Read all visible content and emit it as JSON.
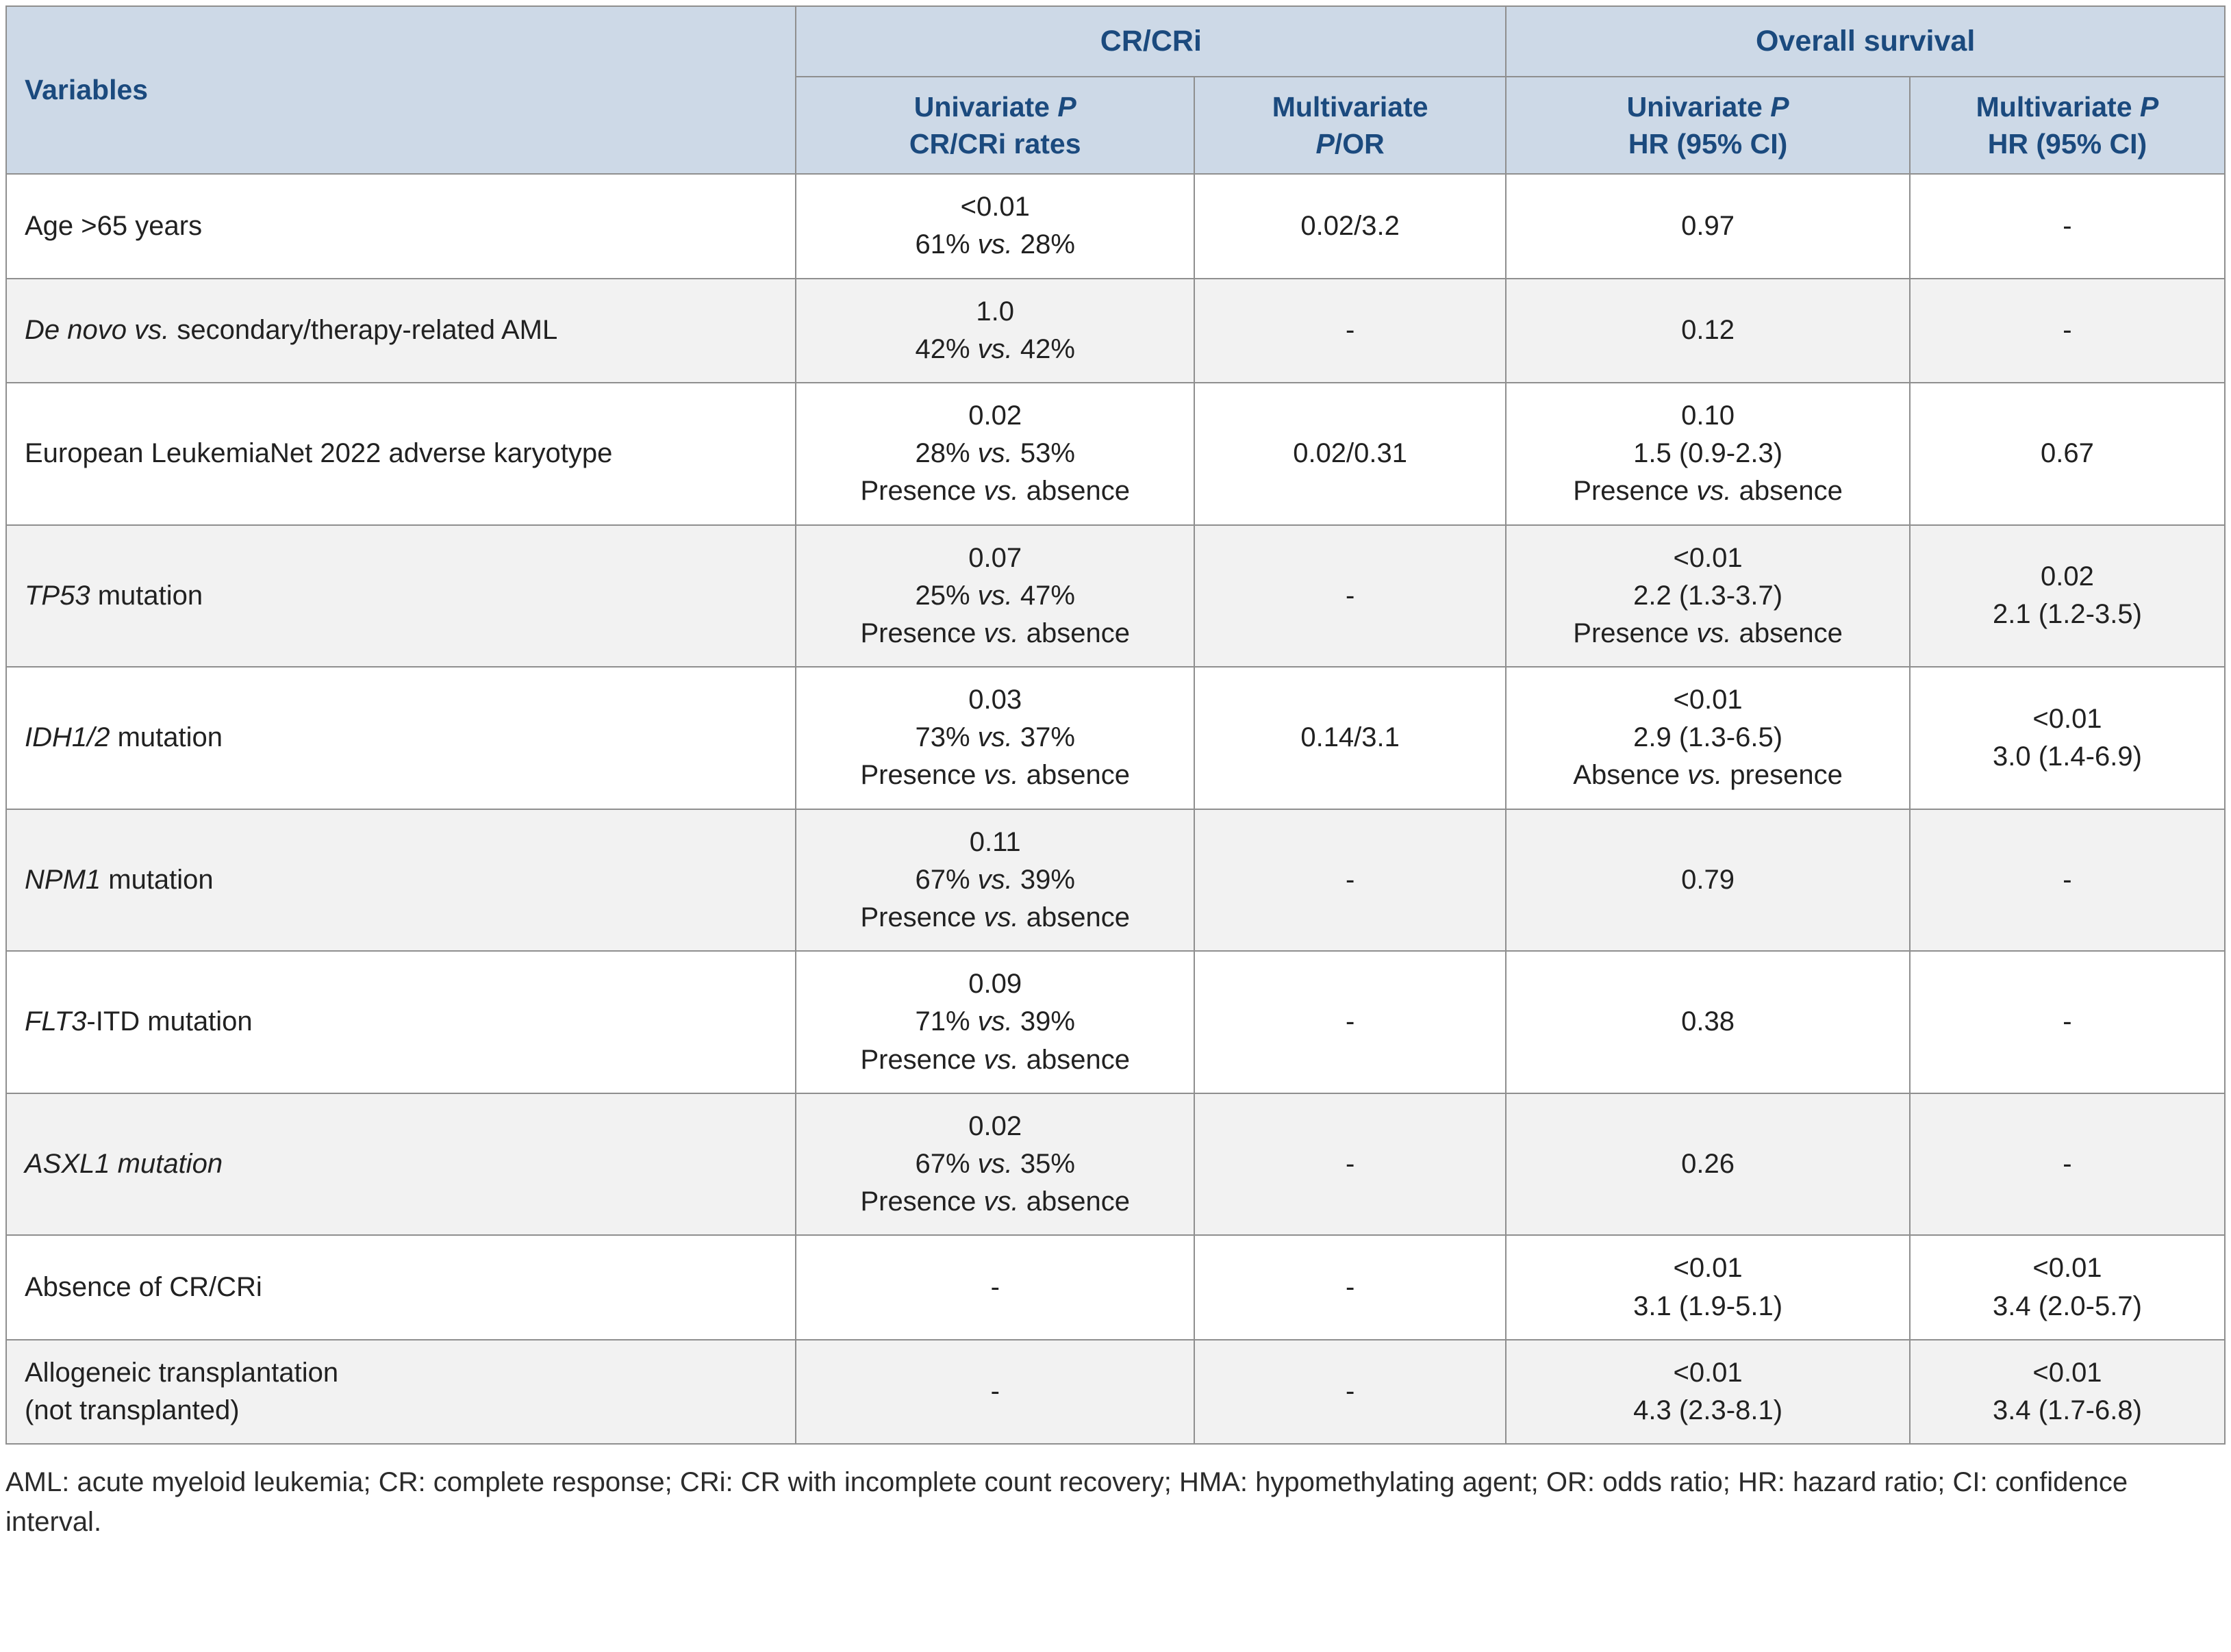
{
  "colors": {
    "header_bg": "#cdd9e7",
    "header_text": "#1b4a7e",
    "border": "#8f8f8f",
    "row_alt": "#f2f2f2",
    "body_text": "#212121"
  },
  "table": {
    "header": {
      "variables_label": "Variables",
      "groups": [
        {
          "label": "CR/CRi",
          "colspan": 2
        },
        {
          "label": "Overall survival",
          "colspan": 2
        }
      ],
      "subheaders": [
        [
          [
            "Univariate ",
            {
              "i": "P"
            }
          ],
          [
            "CR/CRi rates"
          ]
        ],
        [
          [
            "Multivariate"
          ],
          [
            {
              "i": "P"
            },
            "/OR"
          ]
        ],
        [
          [
            "Univariate ",
            {
              "i": "P"
            }
          ],
          [
            "HR (95% CI)"
          ]
        ],
        [
          [
            "Multivariate ",
            {
              "i": "P"
            }
          ],
          [
            "HR (95% CI)"
          ]
        ]
      ]
    },
    "rows": [
      {
        "name": "age-over-65",
        "variable": [
          [
            "Age >65 years"
          ]
        ],
        "cells": [
          [
            [
              "<0.01"
            ],
            [
              "61% ",
              {
                "i": "vs."
              },
              " 28%"
            ]
          ],
          [
            [
              "0.02/3.2"
            ]
          ],
          [
            [
              "0.97"
            ]
          ],
          [
            [
              "-"
            ]
          ]
        ]
      },
      {
        "name": "de-novo-vs-secondary",
        "variable": [
          [
            {
              "i": "De novo vs."
            },
            " secondary/therapy-related AML"
          ]
        ],
        "cells": [
          [
            [
              "1.0"
            ],
            [
              "42% ",
              {
                "i": "vs."
              },
              " 42%"
            ]
          ],
          [
            [
              "-"
            ]
          ],
          [
            [
              "0.12"
            ]
          ],
          [
            [
              "-"
            ]
          ]
        ]
      },
      {
        "name": "eln-2022-adverse-karyotype",
        "variable": [
          [
            "European LeukemiaNet 2022 adverse karyotype"
          ]
        ],
        "cells": [
          [
            [
              "0.02"
            ],
            [
              "28% ",
              {
                "i": "vs."
              },
              " 53%"
            ],
            [
              "Presence ",
              {
                "i": "vs."
              },
              " absence"
            ]
          ],
          [
            [
              "0.02/0.31"
            ]
          ],
          [
            [
              "0.10"
            ],
            [
              "1.5 (0.9-2.3)"
            ],
            [
              "Presence ",
              {
                "i": "vs."
              },
              " absence"
            ]
          ],
          [
            [
              "0.67"
            ]
          ]
        ]
      },
      {
        "name": "tp53-mutation",
        "variable": [
          [
            {
              "i": "TP53"
            },
            " mutation"
          ]
        ],
        "cells": [
          [
            [
              "0.07"
            ],
            [
              "25% ",
              {
                "i": "vs."
              },
              " 47%"
            ],
            [
              "Presence ",
              {
                "i": "vs."
              },
              " absence"
            ]
          ],
          [
            [
              "-"
            ]
          ],
          [
            [
              "<0.01"
            ],
            [
              "2.2 (1.3-3.7)"
            ],
            [
              "Presence ",
              {
                "i": "vs."
              },
              " absence"
            ]
          ],
          [
            [
              "0.02"
            ],
            [
              "2.1 (1.2-3.5)"
            ]
          ]
        ]
      },
      {
        "name": "idh1-2-mutation",
        "variable": [
          [
            {
              "i": "IDH1/2"
            },
            " mutation"
          ]
        ],
        "cells": [
          [
            [
              "0.03"
            ],
            [
              "73% ",
              {
                "i": "vs."
              },
              " 37%"
            ],
            [
              "Presence ",
              {
                "i": "vs."
              },
              " absence"
            ]
          ],
          [
            [
              "0.14/3.1"
            ]
          ],
          [
            [
              "<0.01"
            ],
            [
              "2.9 (1.3-6.5)"
            ],
            [
              "Absence ",
              {
                "i": "vs."
              },
              " presence"
            ]
          ],
          [
            [
              "<0.01"
            ],
            [
              "3.0 (1.4-6.9)"
            ]
          ]
        ]
      },
      {
        "name": "npm1-mutation",
        "variable": [
          [
            {
              "i": "NPM1"
            },
            " mutation"
          ]
        ],
        "cells": [
          [
            [
              "0.11"
            ],
            [
              "67% ",
              {
                "i": "vs."
              },
              " 39%"
            ],
            [
              "Presence ",
              {
                "i": "vs."
              },
              " absence"
            ]
          ],
          [
            [
              "-"
            ]
          ],
          [
            [
              "0.79"
            ]
          ],
          [
            [
              "-"
            ]
          ]
        ]
      },
      {
        "name": "flt3-itd-mutation",
        "variable": [
          [
            {
              "i": "FLT3"
            },
            "-ITD mutation"
          ]
        ],
        "cells": [
          [
            [
              "0.09"
            ],
            [
              "71% ",
              {
                "i": "vs."
              },
              " 39%"
            ],
            [
              "Presence ",
              {
                "i": "vs."
              },
              " absence"
            ]
          ],
          [
            [
              "-"
            ]
          ],
          [
            [
              "0.38"
            ]
          ],
          [
            [
              "-"
            ]
          ]
        ]
      },
      {
        "name": "asxl1-mutation",
        "variable": [
          [
            {
              "i": "ASXL1 mutation"
            }
          ]
        ],
        "cells": [
          [
            [
              "0.02"
            ],
            [
              "67% ",
              {
                "i": "vs."
              },
              " 35%"
            ],
            [
              "Presence ",
              {
                "i": "vs."
              },
              " absence"
            ]
          ],
          [
            [
              "-"
            ]
          ],
          [
            [
              "0.26"
            ]
          ],
          [
            [
              "-"
            ]
          ]
        ]
      },
      {
        "name": "absence-of-cr-cri",
        "variable": [
          [
            "Absence of CR/CRi"
          ]
        ],
        "cells": [
          [
            [
              "-"
            ]
          ],
          [
            [
              "-"
            ]
          ],
          [
            [
              "<0.01"
            ],
            [
              "3.1 (1.9-5.1)"
            ]
          ],
          [
            [
              "<0.01"
            ],
            [
              "3.4 (2.0-5.7)"
            ]
          ]
        ]
      },
      {
        "name": "allogeneic-transplantation",
        "variable": [
          [
            "Allogeneic transplantation"
          ],
          [
            "(not transplanted)"
          ]
        ],
        "cells": [
          [
            [
              "-"
            ]
          ],
          [
            [
              "-"
            ]
          ],
          [
            [
              "<0.01"
            ],
            [
              "4.3 (2.3-8.1)"
            ]
          ],
          [
            [
              "<0.01"
            ],
            [
              "3.4 (1.7-6.8)"
            ]
          ]
        ]
      }
    ]
  },
  "footnote": "AML: acute myeloid leukemia; CR: complete response; CRi: CR with incomplete count recovery; HMA: hypomethylating agent; OR: odds ratio; HR: hazard ratio; CI: confidence interval."
}
